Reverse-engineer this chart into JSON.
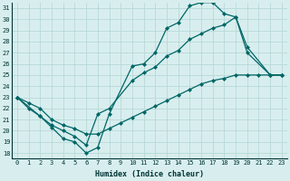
{
  "xlabel": "Humidex (Indice chaleur)",
  "bg_color": "#d8eeee",
  "grid_color": "#b8d8d8",
  "line_color": "#006666",
  "xlim": [
    -0.5,
    23.5
  ],
  "ylim": [
    17.5,
    31.5
  ],
  "xticks": [
    0,
    1,
    2,
    3,
    4,
    5,
    6,
    7,
    8,
    9,
    10,
    11,
    12,
    13,
    14,
    15,
    16,
    17,
    18,
    19,
    20,
    21,
    22,
    23
  ],
  "yticks": [
    18,
    19,
    20,
    21,
    22,
    23,
    24,
    25,
    26,
    27,
    28,
    29,
    30,
    31
  ],
  "line1_x": [
    0,
    1,
    2,
    3,
    4,
    5,
    6,
    7,
    8,
    10,
    11,
    12,
    13,
    14,
    15,
    16,
    17,
    18,
    19,
    20,
    22,
    23
  ],
  "line1_y": [
    23,
    22,
    21.3,
    20.3,
    19.3,
    19.0,
    18.0,
    18.5,
    21.5,
    25.8,
    26.0,
    27.0,
    29.2,
    29.7,
    31.2,
    31.5,
    31.5,
    30.5,
    30.2,
    27.5,
    25.0,
    25.0
  ],
  "line2_x": [
    0,
    2,
    3,
    4,
    5,
    6,
    7,
    8,
    10,
    11,
    12,
    13,
    14,
    15,
    16,
    17,
    18,
    19,
    20,
    22,
    23
  ],
  "line2_y": [
    23,
    21.3,
    20.5,
    20.0,
    19.5,
    18.7,
    21.5,
    22.0,
    24.5,
    25.2,
    25.7,
    26.7,
    27.2,
    28.2,
    28.7,
    29.2,
    29.5,
    30.2,
    27.0,
    25.0,
    25.0
  ],
  "line3_x": [
    0,
    1,
    2,
    3,
    4,
    5,
    6,
    7,
    8,
    9,
    10,
    11,
    12,
    13,
    14,
    15,
    16,
    17,
    18,
    19,
    20,
    21,
    22,
    23
  ],
  "line3_y": [
    23.0,
    22.5,
    22.0,
    21.0,
    20.5,
    20.2,
    19.7,
    19.7,
    20.2,
    20.7,
    21.2,
    21.7,
    22.2,
    22.7,
    23.2,
    23.7,
    24.2,
    24.5,
    24.7,
    25.0,
    25.0,
    25.0,
    25.0,
    25.0
  ]
}
